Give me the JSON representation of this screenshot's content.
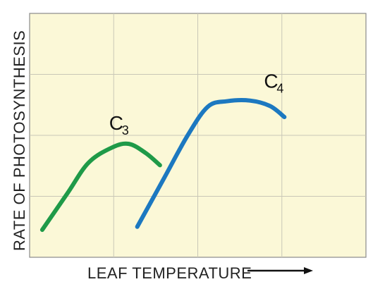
{
  "chart_data": {
    "type": "line",
    "xlabel": "LEAF TEMPERATURE",
    "ylabel": "RATE OF PHOTOSYNTHESIS",
    "xlim": [
      0,
      4
    ],
    "ylim": [
      0,
      4
    ],
    "grid": true,
    "series": [
      {
        "name": "C3",
        "label_main": "C",
        "label_sub": "3",
        "color": "#1f9a48",
        "points": [
          [
            0.15,
            0.45
          ],
          [
            0.45,
            1.05
          ],
          [
            0.7,
            1.55
          ],
          [
            0.98,
            1.8
          ],
          [
            1.18,
            1.86
          ],
          [
            1.38,
            1.71
          ],
          [
            1.55,
            1.51
          ]
        ]
      },
      {
        "name": "C4",
        "label_main": "C",
        "label_sub": "4",
        "color": "#1c78c0",
        "points": [
          [
            1.28,
            0.5
          ],
          [
            1.6,
            1.3
          ],
          [
            1.88,
            2.0
          ],
          [
            2.12,
            2.47
          ],
          [
            2.35,
            2.56
          ],
          [
            2.62,
            2.57
          ],
          [
            2.86,
            2.48
          ],
          [
            3.03,
            2.3
          ]
        ]
      }
    ]
  }
}
